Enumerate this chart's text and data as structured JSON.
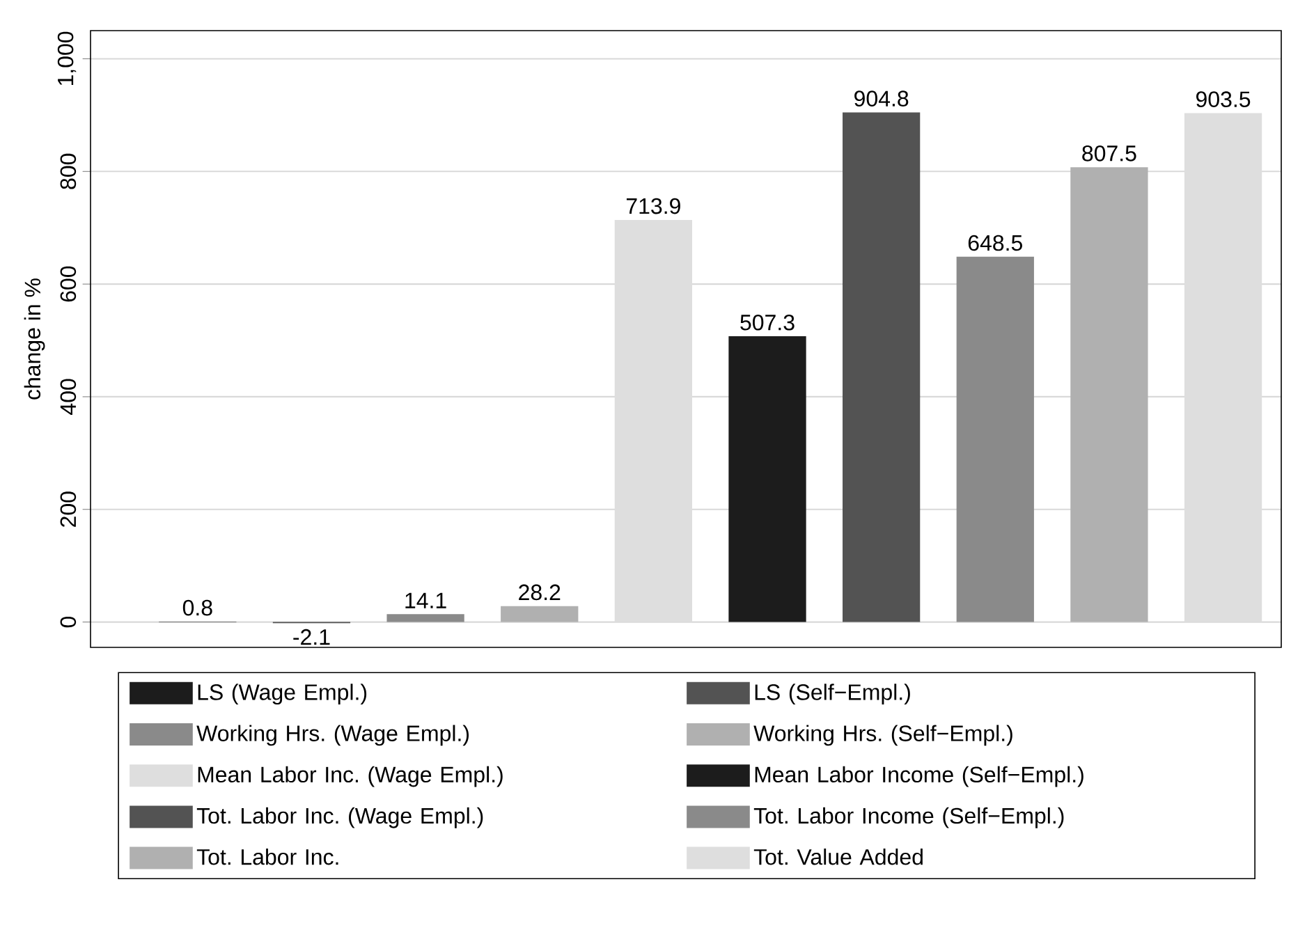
{
  "chart_data": {
    "type": "bar",
    "ylabel": "change in %",
    "categories": [
      null,
      null,
      null,
      null,
      null,
      null,
      null,
      null,
      null,
      null
    ],
    "series": [
      {
        "name": "LS (Wage Empl.)",
        "color": "#1c1c1c",
        "values": [
          0.8,
          null,
          null,
          null,
          null,
          null,
          null,
          null,
          null,
          null
        ]
      },
      {
        "name": "LS (Self−Empl.)",
        "color": "#535353",
        "values": [
          null,
          -2.1,
          null,
          null,
          null,
          null,
          null,
          null,
          null,
          null
        ]
      },
      {
        "name": "Working Hrs. (Wage Empl.)",
        "color": "#8a8a8a",
        "values": [
          null,
          null,
          14.1,
          null,
          null,
          null,
          null,
          null,
          null,
          null
        ]
      },
      {
        "name": "Working Hrs. (Self−Empl.)",
        "color": "#b0b0b0",
        "values": [
          null,
          null,
          null,
          28.2,
          null,
          null,
          null,
          null,
          null,
          null
        ]
      },
      {
        "name": "Mean Labor Inc. (Wage Empl.)",
        "color": "#dedede",
        "values": [
          null,
          null,
          null,
          null,
          713.9,
          null,
          null,
          null,
          null,
          null
        ]
      },
      {
        "name": "Mean Labor Income (Self−Empl.)",
        "color": "#1c1c1c",
        "values": [
          null,
          null,
          null,
          null,
          null,
          507.3,
          null,
          null,
          null,
          null
        ]
      },
      {
        "name": "Tot. Labor Inc. (Wage Empl.)",
        "color": "#535353",
        "values": [
          null,
          null,
          null,
          null,
          null,
          null,
          904.8,
          null,
          null,
          null
        ]
      },
      {
        "name": "Tot. Labor Income (Self−Empl.)",
        "color": "#8a8a8a",
        "values": [
          null,
          null,
          null,
          null,
          null,
          null,
          null,
          648.5,
          null,
          null
        ]
      },
      {
        "name": "Tot. Labor Inc.",
        "color": "#b0b0b0",
        "values": [
          null,
          null,
          null,
          null,
          null,
          null,
          null,
          null,
          807.5,
          null
        ]
      },
      {
        "name": "Tot. Value Added",
        "color": "#dedede",
        "values": [
          null,
          null,
          null,
          null,
          null,
          null,
          null,
          null,
          null,
          903.5
        ]
      }
    ],
    "ylim": [
      -45,
      1050
    ],
    "yticks": [
      0,
      200,
      400,
      600,
      800,
      {
        "value": 1000,
        "label": "1,000"
      }
    ],
    "grid": "y",
    "legend": "bottom",
    "data_labels": true
  }
}
